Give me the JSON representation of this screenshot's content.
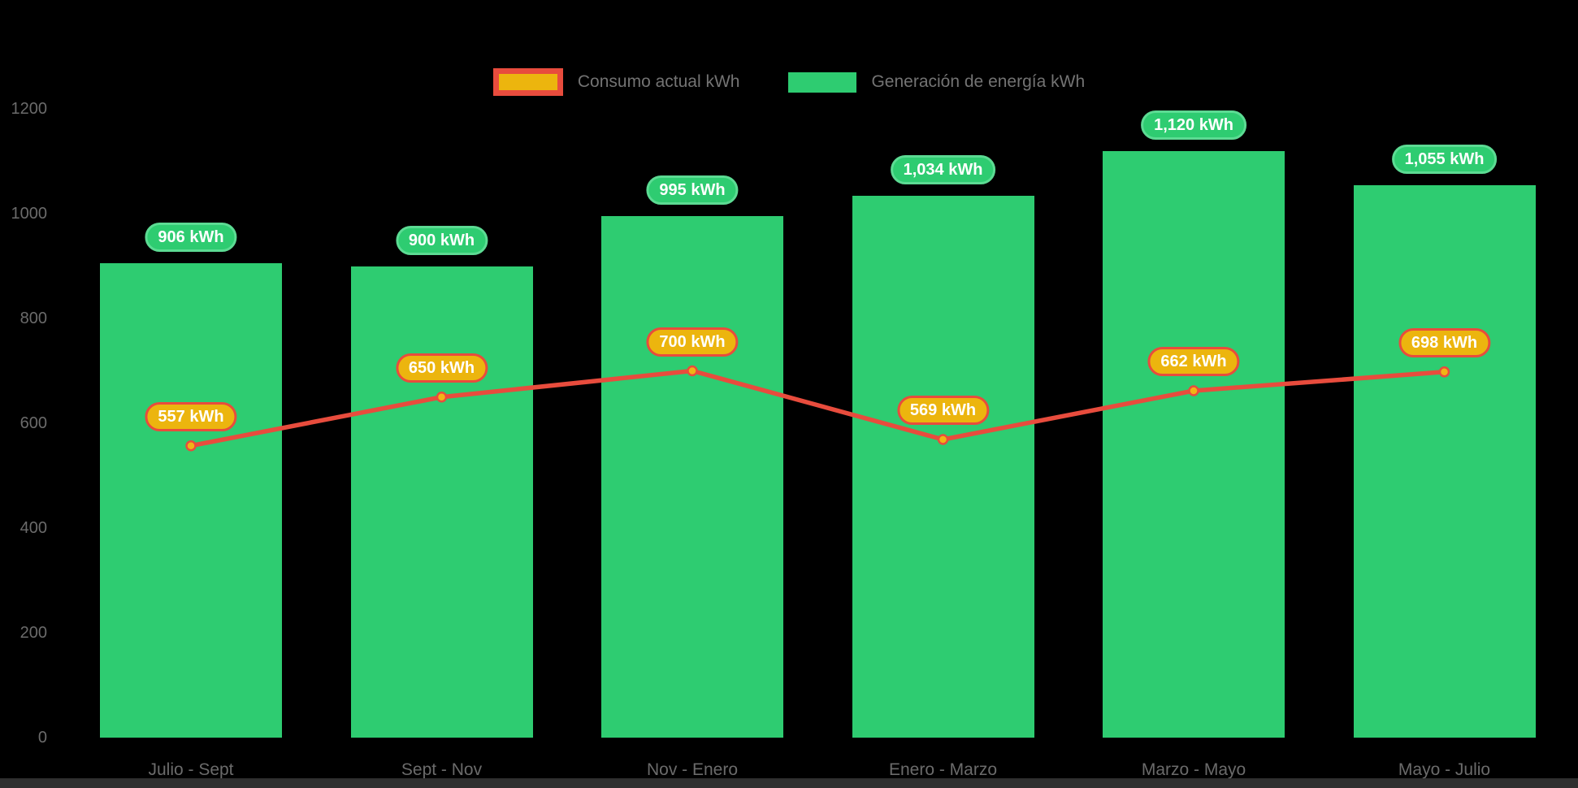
{
  "chart_data": {
    "type": "bar+line",
    "categories": [
      "Julio - Sept",
      "Sept - Nov",
      "Nov - Enero",
      "Enero - Marzo",
      "Marzo - Mayo",
      "Mayo - Julio"
    ],
    "series": [
      {
        "name": "Generación de energía kWh",
        "type": "bar",
        "values": [
          906,
          900,
          995,
          1034,
          1120,
          1055
        ],
        "labels": [
          "906 kWh",
          "900 kWh",
          "995 kWh",
          "1,034 kWh",
          "1,120 kWh",
          "1,055 kWh"
        ]
      },
      {
        "name": "Consumo actual kWh",
        "type": "line",
        "values": [
          557,
          650,
          700,
          569,
          662,
          698
        ],
        "labels": [
          "557 kWh",
          "650 kWh",
          "700 kWh",
          "569 kWh",
          "662 kWh",
          "698 kWh"
        ]
      }
    ],
    "yticks": [
      0,
      200,
      400,
      600,
      800,
      1000,
      1200
    ],
    "ylim": [
      0,
      1200
    ],
    "grid": false,
    "legend_position": "top-center",
    "legend": [
      {
        "label": "Consumo actual kWh"
      },
      {
        "label": "Generación de energía kWh"
      }
    ],
    "colors": {
      "background": "#000000",
      "bar": "#2ecc71",
      "bar_pill_border": "#5cdb93",
      "line": "#e84c3d",
      "point_fill": "#f2b415",
      "consumo_pill_bg": "#ecb50e",
      "consumo_pill_border": "#e84c3d",
      "axis_text": "#6b6b6b",
      "legend_text": "#737373",
      "bottom_strip": "#2f2f2f"
    }
  }
}
